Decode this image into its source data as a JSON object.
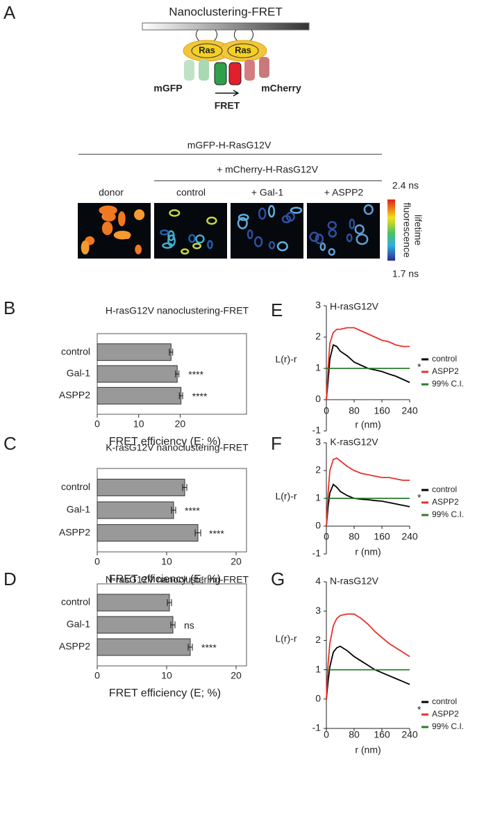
{
  "panel_a": {
    "label": "A",
    "title": "Nanoclustering-FRET",
    "ras_labels": [
      "Ras",
      "Ras"
    ],
    "donor_label": "mGFP",
    "acceptor_label": "mCherry",
    "fret_label": "FRET",
    "construct": "mGFP-H-RasG12V",
    "acceptor_construct": "+ mCherry-H-RasG12V",
    "conditions": [
      "donor",
      "control",
      "+ Gal-1",
      "+ ASPP2"
    ],
    "scale_max": "2.4 ns",
    "scale_min": "1.7 ns",
    "scale_title": [
      "fluorescence",
      "lifetime"
    ]
  },
  "chart_data": [
    {
      "type": "bar",
      "panel_label": "B",
      "title": "H-rasG12V nanoclustering-FRET",
      "categories": [
        "control",
        "Gal-1",
        "ASPP2"
      ],
      "values": [
        17.8,
        19.3,
        20.2
      ],
      "errors": [
        0.4,
        0.4,
        0.4
      ],
      "annotations": [
        null,
        "****",
        "****"
      ],
      "color": "#999999",
      "xlabel": "FRET efficiency (E; %)",
      "xlim": [
        0,
        36
      ],
      "xticks": [
        0,
        10,
        20
      ]
    },
    {
      "type": "bar",
      "panel_label": "C",
      "title": "K-rasG12V nanoclustering-FRET",
      "categories": [
        "control",
        "Gal-1",
        "ASPP2"
      ],
      "values": [
        12.6,
        11.0,
        14.5
      ],
      "errors": [
        0.3,
        0.3,
        0.4
      ],
      "annotations": [
        null,
        "****",
        "****"
      ],
      "color": "#999999",
      "xlabel": "FRET efficiency (E; %)",
      "xlim": [
        0,
        21.5
      ],
      "xticks": [
        0,
        10,
        20
      ]
    },
    {
      "type": "bar",
      "panel_label": "D",
      "title": "N-rasG12V nanoclustering-FRET",
      "categories": [
        "control",
        "Gal-1",
        "ASPP2"
      ],
      "values": [
        10.4,
        10.9,
        13.4
      ],
      "errors": [
        0.3,
        0.3,
        0.3
      ],
      "annotations": [
        null,
        "ns",
        "****"
      ],
      "color": "#999999",
      "xlabel": "FRET efficiency (E; %)",
      "xlim": [
        0,
        21.5
      ],
      "xticks": [
        0,
        10,
        20
      ]
    },
    {
      "type": "line",
      "panel_label": "E",
      "title": "H-rasG12V",
      "xlabel": "r (nm)",
      "ylabel": "L(r)-r",
      "x": [
        0,
        5,
        10,
        20,
        30,
        40,
        60,
        80,
        100,
        120,
        140,
        160,
        180,
        200,
        220,
        240
      ],
      "series": [
        {
          "name": "control",
          "color": "#000000",
          "values": [
            0,
            0.6,
            1.3,
            1.75,
            1.7,
            1.55,
            1.4,
            1.2,
            1.1,
            1.0,
            0.95,
            0.9,
            0.82,
            0.75,
            0.65,
            0.55
          ]
        },
        {
          "name": "ASPP2",
          "color": "#e8302a",
          "legend_mark": "*",
          "values": [
            0,
            1.0,
            1.8,
            2.15,
            2.25,
            2.25,
            2.3,
            2.3,
            2.2,
            2.1,
            2.0,
            1.9,
            1.85,
            1.75,
            1.7,
            1.7
          ]
        },
        {
          "name": "99% C.I.",
          "color": "#2a7a2a",
          "values": [
            1,
            1,
            1,
            1,
            1,
            1,
            1,
            1,
            1,
            1,
            1,
            1,
            1,
            1,
            1,
            1
          ]
        }
      ],
      "xlim": [
        0,
        240
      ],
      "xticks": [
        0,
        80,
        160,
        240
      ],
      "ylim": [
        -1,
        3
      ],
      "yticks": [
        -1,
        0,
        1,
        2,
        3
      ]
    },
    {
      "type": "line",
      "panel_label": "F",
      "title": "K-rasG12V",
      "xlabel": "r (nm)",
      "ylabel": "L(r)-r",
      "x": [
        0,
        5,
        10,
        20,
        30,
        40,
        60,
        80,
        100,
        120,
        140,
        160,
        180,
        200,
        220,
        240
      ],
      "series": [
        {
          "name": "control",
          "color": "#000000",
          "values": [
            0,
            0.7,
            1.2,
            1.5,
            1.4,
            1.25,
            1.1,
            1.0,
            0.97,
            0.95,
            0.92,
            0.9,
            0.85,
            0.8,
            0.75,
            0.7
          ]
        },
        {
          "name": "ASPP2",
          "color": "#e8302a",
          "legend_mark": "*",
          "values": [
            0,
            1.2,
            2.0,
            2.4,
            2.45,
            2.35,
            2.15,
            2.0,
            1.9,
            1.85,
            1.8,
            1.75,
            1.75,
            1.7,
            1.65,
            1.65
          ]
        },
        {
          "name": "99% C.I.",
          "color": "#2a7a2a",
          "values": [
            1,
            1,
            1,
            1,
            1,
            1,
            1,
            1,
            1,
            1,
            1,
            1,
            1,
            1,
            1,
            1
          ]
        }
      ],
      "xlim": [
        0,
        240
      ],
      "xticks": [
        0,
        80,
        160,
        240
      ],
      "ylim": [
        -1,
        3
      ],
      "yticks": [
        -1,
        0,
        1,
        2,
        3
      ]
    },
    {
      "type": "line",
      "panel_label": "G",
      "title": "N-rasG12V",
      "xlabel": "r (nm)",
      "ylabel": "L(r)-r",
      "x": [
        0,
        5,
        10,
        20,
        30,
        40,
        60,
        80,
        100,
        120,
        140,
        160,
        180,
        200,
        220,
        240
      ],
      "series": [
        {
          "name": "control",
          "color": "#000000",
          "values": [
            0,
            0.6,
            1.1,
            1.6,
            1.75,
            1.8,
            1.65,
            1.45,
            1.3,
            1.15,
            1.0,
            0.9,
            0.8,
            0.7,
            0.6,
            0.5
          ]
        },
        {
          "name": "ASPP2",
          "color": "#e8302a",
          "legend_mark": "*",
          "values": [
            0,
            1.2,
            1.9,
            2.5,
            2.75,
            2.85,
            2.9,
            2.9,
            2.75,
            2.55,
            2.3,
            2.1,
            1.9,
            1.75,
            1.6,
            1.45
          ]
        },
        {
          "name": "99% C.I.",
          "color": "#2a7a2a",
          "values": [
            1,
            1,
            1,
            1,
            1,
            1,
            1,
            1,
            1,
            1,
            1,
            1,
            1,
            1,
            1,
            1
          ]
        }
      ],
      "xlim": [
        0,
        240
      ],
      "xticks": [
        0,
        80,
        160,
        240
      ],
      "ylim": [
        -1,
        4
      ],
      "yticks": [
        -1,
        0,
        1,
        2,
        3,
        4
      ]
    }
  ]
}
